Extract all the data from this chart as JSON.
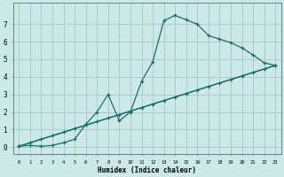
{
  "xlabel": "Humidex (Indice chaleur)",
  "bg_color": "#cce8e8",
  "grid_color": "#aacccc",
  "line_color": "#1a6e6a",
  "xlim": [
    -0.5,
    23.5
  ],
  "ylim": [
    -0.4,
    8.2
  ],
  "xticks": [
    0,
    1,
    2,
    3,
    4,
    5,
    6,
    7,
    8,
    9,
    10,
    11,
    12,
    13,
    14,
    15,
    16,
    17,
    18,
    19,
    20,
    21,
    22,
    23
  ],
  "yticks": [
    0,
    1,
    2,
    3,
    4,
    5,
    6,
    7
  ],
  "line1_x": [
    0,
    1,
    2,
    3,
    4,
    5,
    6,
    7,
    8,
    9,
    10,
    11,
    12,
    13,
    14,
    15,
    16,
    17,
    18,
    19,
    20,
    21,
    22,
    23
  ],
  "line1_y": [
    0.05,
    0.1,
    0.05,
    0.1,
    0.25,
    0.45,
    1.3,
    2.0,
    3.0,
    1.5,
    2.0,
    3.75,
    4.85,
    7.2,
    7.5,
    7.25,
    7.0,
    6.35,
    6.15,
    5.95,
    5.65,
    5.25,
    4.8,
    4.65
  ],
  "line2_x": [
    0,
    1,
    2,
    3,
    4,
    5,
    6,
    7,
    8,
    9,
    10,
    11,
    12,
    13,
    14,
    15,
    16,
    17,
    18,
    19,
    20,
    21,
    22,
    23
  ],
  "line2_y": [
    0.05,
    0.25,
    0.45,
    0.65,
    0.85,
    1.05,
    1.25,
    1.45,
    1.65,
    1.85,
    2.05,
    2.25,
    2.45,
    2.65,
    2.85,
    3.05,
    3.25,
    3.45,
    3.65,
    3.85,
    4.05,
    4.25,
    4.45,
    4.65
  ],
  "line3_x": [
    0,
    23
  ],
  "line3_y": [
    0.05,
    4.65
  ]
}
